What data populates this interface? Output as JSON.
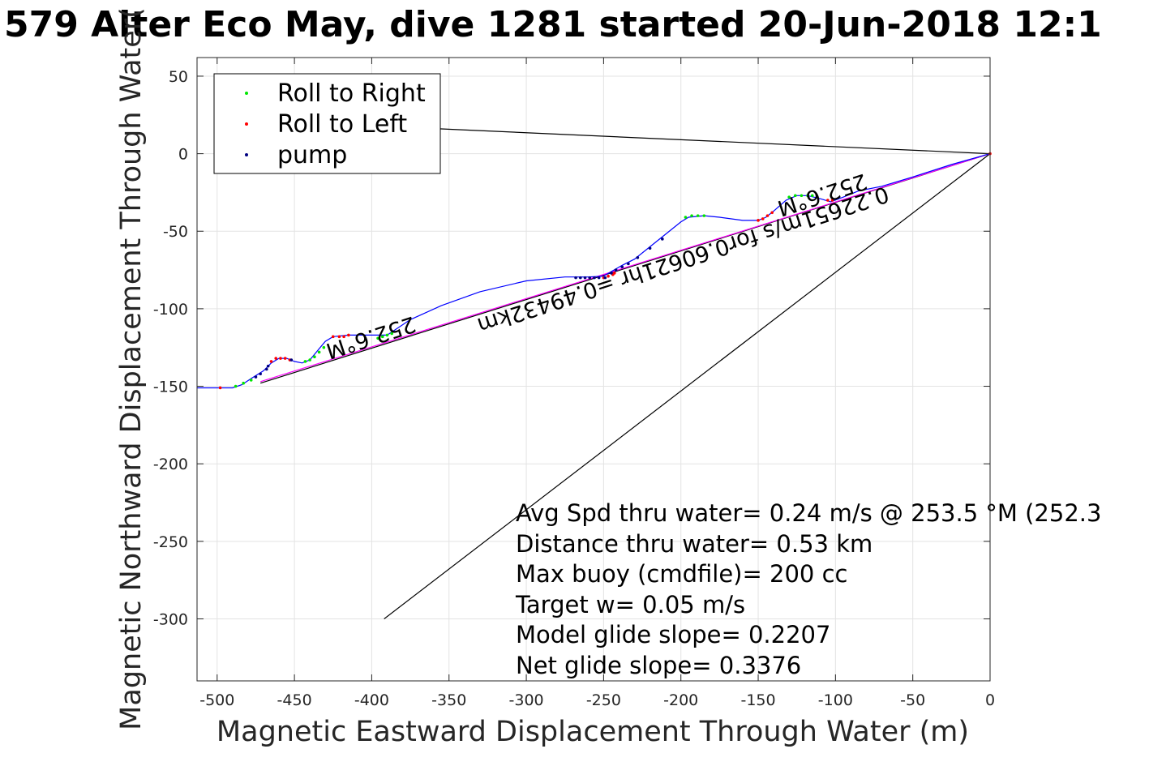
{
  "title": "579 Alter Eco May, dive 1281 started 20-Jun-2018 12:1",
  "chart_data": {
    "type": "line",
    "xlabel": "Magnetic Eastward Displacement Through Water (m)",
    "ylabel": "Magnetic Northward Displacement Through Water(",
    "xlim": [
      -513,
      0
    ],
    "ylim": [
      -340,
      62
    ],
    "xticks": [
      -500,
      -450,
      -400,
      -350,
      -300,
      -250,
      -200,
      -150,
      -100,
      -50,
      0
    ],
    "yticks": [
      50,
      0,
      -50,
      -100,
      -150,
      -200,
      -250,
      -300
    ],
    "grid": true,
    "legend_position": "top-left",
    "legend": [
      {
        "label": "Roll to Right",
        "color": "#00e600"
      },
      {
        "label": "Roll to Left",
        "color": "#ff0000"
      },
      {
        "label": "pump",
        "color": "#000080"
      }
    ],
    "track": {
      "name": "glider track",
      "color": "#0000ff",
      "points": [
        [
          -513,
          -151
        ],
        [
          -500,
          -151
        ],
        [
          -490,
          -151
        ],
        [
          -484,
          -149
        ],
        [
          -478,
          -145
        ],
        [
          -470,
          -140
        ],
        [
          -465,
          -135
        ],
        [
          -460,
          -132
        ],
        [
          -455,
          -132
        ],
        [
          -450,
          -134
        ],
        [
          -445,
          -135
        ],
        [
          -440,
          -133
        ],
        [
          -435,
          -127
        ],
        [
          -430,
          -121
        ],
        [
          -425,
          -118
        ],
        [
          -415,
          -117
        ],
        [
          -400,
          -117
        ],
        [
          -390,
          -117
        ],
        [
          -375,
          -107
        ],
        [
          -355,
          -98
        ],
        [
          -330,
          -89
        ],
        [
          -300,
          -82
        ],
        [
          -275,
          -79.5
        ],
        [
          -260,
          -79.5
        ],
        [
          -250,
          -79
        ],
        [
          -245,
          -76
        ],
        [
          -238,
          -72
        ],
        [
          -230,
          -68
        ],
        [
          -220,
          -60
        ],
        [
          -210,
          -52
        ],
        [
          -200,
          -44
        ],
        [
          -195,
          -41
        ],
        [
          -185,
          -40
        ],
        [
          -175,
          -41
        ],
        [
          -160,
          -43
        ],
        [
          -150,
          -43
        ],
        [
          -145,
          -41
        ],
        [
          -140,
          -37
        ],
        [
          -132,
          -30
        ],
        [
          -125,
          -27
        ],
        [
          -118,
          -27
        ],
        [
          -110,
          -29
        ],
        [
          -103,
          -31
        ],
        [
          -95,
          -28
        ],
        [
          -85,
          -24
        ],
        [
          -70,
          -21
        ],
        [
          -50,
          -15
        ],
        [
          -25,
          -7
        ],
        [
          0,
          0
        ]
      ]
    },
    "roll_right": [
      [
        -488,
        -150
      ],
      [
        -483,
        -148
      ],
      [
        -478,
        -146
      ],
      [
        -443,
        -134
      ],
      [
        -440,
        -133
      ],
      [
        -437,
        -131
      ],
      [
        -434,
        -128
      ],
      [
        -431,
        -125
      ],
      [
        -396,
        -119
      ],
      [
        -393,
        -118
      ],
      [
        -390,
        -117
      ],
      [
        -387,
        -116
      ],
      [
        -197,
        -41
      ],
      [
        -193,
        -40
      ],
      [
        -189,
        -40
      ],
      [
        -185,
        -40
      ],
      [
        -130,
        -28
      ],
      [
        -126,
        -27
      ],
      [
        -122,
        -27
      ],
      [
        -118,
        -27
      ],
      [
        -115,
        -27
      ]
    ],
    "roll_left": [
      [
        -498,
        -151
      ],
      [
        -465,
        -134
      ],
      [
        -462,
        -132
      ],
      [
        -459,
        -132
      ],
      [
        -456,
        -132
      ],
      [
        -453,
        -133
      ],
      [
        -425,
        -118
      ],
      [
        -421,
        -118
      ],
      [
        -418,
        -118
      ],
      [
        -415,
        -117
      ],
      [
        -250,
        -80
      ],
      [
        -247,
        -79
      ],
      [
        -244,
        -78
      ],
      [
        -243,
        -77
      ],
      [
        -150,
        -43
      ],
      [
        -147,
        -42
      ],
      [
        -144,
        -40
      ],
      [
        -141,
        -38
      ],
      [
        -105,
        -30
      ],
      [
        -102,
        -30
      ],
      [
        0,
        0
      ]
    ],
    "pump": [
      [
        -475,
        -144
      ],
      [
        -472,
        -142
      ],
      [
        -468,
        -139
      ],
      [
        -467,
        -137
      ],
      [
        -452,
        -133
      ],
      [
        -268,
        -80
      ],
      [
        -265,
        -80
      ],
      [
        -262,
        -80
      ],
      [
        -259,
        -80
      ],
      [
        -256,
        -80
      ],
      [
        -253,
        -80
      ],
      [
        -249,
        -80
      ],
      [
        -245,
        -77
      ],
      [
        -242,
        -75
      ],
      [
        -238,
        -73
      ],
      [
        -234,
        -71
      ],
      [
        -228,
        -67
      ],
      [
        -220,
        -61
      ],
      [
        -212,
        -55
      ]
    ],
    "lines": [
      {
        "name": "net displacement",
        "color": "#000000",
        "points": [
          [
            0,
            0
          ],
          [
            -472,
            -148
          ]
        ]
      },
      {
        "name": "depth-average current",
        "color": "#000000",
        "points": [
          [
            0,
            0
          ],
          [
            -392,
            -300
          ]
        ]
      },
      {
        "name": "segment to legend",
        "color": "#000000",
        "points": [
          [
            0,
            0
          ],
          [
            -377,
            17
          ]
        ]
      },
      {
        "name": "model track",
        "color": "#ff00ff",
        "points": [
          [
            0,
            0
          ],
          [
            -472,
            -147
          ]
        ]
      }
    ],
    "annotations": [
      {
        "text": "252.6°M",
        "x": -110,
        "y": -22,
        "rotation": 162
      },
      {
        "text": "0.22651m/s for0.60621hr =0.49432km",
        "x": -200,
        "y": -64,
        "rotation": 162
      },
      {
        "text": "252.6°M",
        "x": -402,
        "y": -114,
        "rotation": 162
      }
    ],
    "stats_lines": [
      "Avg Spd thru water=  0.24 m/s @ 253.5 °M (252.3",
      "Distance thru water=  0.53 km",
      "Max buoy (cmdfile)= 200 cc",
      "Target w= 0.05 m/s",
      "Model glide slope= 0.2207",
      "Net glide slope= 0.3376"
    ]
  }
}
